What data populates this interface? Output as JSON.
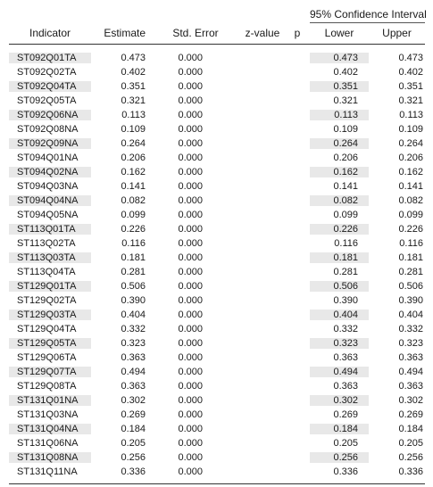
{
  "table": {
    "ci_header": "95% Confidence Interval",
    "columns": {
      "indicator": "Indicator",
      "estimate": "Estimate",
      "std_error": "Std. Error",
      "z_value": "z-value",
      "p": "p",
      "lower": "Lower",
      "upper": "Upper"
    },
    "rows": [
      {
        "indicator": "ST092Q01TA",
        "estimate": "0.473",
        "std_error": "0.000",
        "lower": "0.473",
        "upper": "0.473"
      },
      {
        "indicator": "ST092Q02TA",
        "estimate": "0.402",
        "std_error": "0.000",
        "lower": "0.402",
        "upper": "0.402"
      },
      {
        "indicator": "ST092Q04TA",
        "estimate": "0.351",
        "std_error": "0.000",
        "lower": "0.351",
        "upper": "0.351"
      },
      {
        "indicator": "ST092Q05TA",
        "estimate": "0.321",
        "std_error": "0.000",
        "lower": "0.321",
        "upper": "0.321"
      },
      {
        "indicator": "ST092Q06NA",
        "estimate": "0.113",
        "std_error": "0.000",
        "lower": "0.113",
        "upper": "0.113"
      },
      {
        "indicator": "ST092Q08NA",
        "estimate": "0.109",
        "std_error": "0.000",
        "lower": "0.109",
        "upper": "0.109"
      },
      {
        "indicator": "ST092Q09NA",
        "estimate": "0.264",
        "std_error": "0.000",
        "lower": "0.264",
        "upper": "0.264"
      },
      {
        "indicator": "ST094Q01NA",
        "estimate": "0.206",
        "std_error": "0.000",
        "lower": "0.206",
        "upper": "0.206"
      },
      {
        "indicator": "ST094Q02NA",
        "estimate": "0.162",
        "std_error": "0.000",
        "lower": "0.162",
        "upper": "0.162"
      },
      {
        "indicator": "ST094Q03NA",
        "estimate": "0.141",
        "std_error": "0.000",
        "lower": "0.141",
        "upper": "0.141"
      },
      {
        "indicator": "ST094Q04NA",
        "estimate": "0.082",
        "std_error": "0.000",
        "lower": "0.082",
        "upper": "0.082"
      },
      {
        "indicator": "ST094Q05NA",
        "estimate": "0.099",
        "std_error": "0.000",
        "lower": "0.099",
        "upper": "0.099"
      },
      {
        "indicator": "ST113Q01TA",
        "estimate": "0.226",
        "std_error": "0.000",
        "lower": "0.226",
        "upper": "0.226"
      },
      {
        "indicator": "ST113Q02TA",
        "estimate": "0.116",
        "std_error": "0.000",
        "lower": "0.116",
        "upper": "0.116"
      },
      {
        "indicator": "ST113Q03TA",
        "estimate": "0.181",
        "std_error": "0.000",
        "lower": "0.181",
        "upper": "0.181"
      },
      {
        "indicator": "ST113Q04TA",
        "estimate": "0.281",
        "std_error": "0.000",
        "lower": "0.281",
        "upper": "0.281"
      },
      {
        "indicator": "ST129Q01TA",
        "estimate": "0.506",
        "std_error": "0.000",
        "lower": "0.506",
        "upper": "0.506"
      },
      {
        "indicator": "ST129Q02TA",
        "estimate": "0.390",
        "std_error": "0.000",
        "lower": "0.390",
        "upper": "0.390"
      },
      {
        "indicator": "ST129Q03TA",
        "estimate": "0.404",
        "std_error": "0.000",
        "lower": "0.404",
        "upper": "0.404"
      },
      {
        "indicator": "ST129Q04TA",
        "estimate": "0.332",
        "std_error": "0.000",
        "lower": "0.332",
        "upper": "0.332"
      },
      {
        "indicator": "ST129Q05TA",
        "estimate": "0.323",
        "std_error": "0.000",
        "lower": "0.323",
        "upper": "0.323"
      },
      {
        "indicator": "ST129Q06TA",
        "estimate": "0.363",
        "std_error": "0.000",
        "lower": "0.363",
        "upper": "0.363"
      },
      {
        "indicator": "ST129Q07TA",
        "estimate": "0.494",
        "std_error": "0.000",
        "lower": "0.494",
        "upper": "0.494"
      },
      {
        "indicator": "ST129Q08TA",
        "estimate": "0.363",
        "std_error": "0.000",
        "lower": "0.363",
        "upper": "0.363"
      },
      {
        "indicator": "ST131Q01NA",
        "estimate": "0.302",
        "std_error": "0.000",
        "lower": "0.302",
        "upper": "0.302"
      },
      {
        "indicator": "ST131Q03NA",
        "estimate": "0.269",
        "std_error": "0.000",
        "lower": "0.269",
        "upper": "0.269"
      },
      {
        "indicator": "ST131Q04NA",
        "estimate": "0.184",
        "std_error": "0.000",
        "lower": "0.184",
        "upper": "0.184"
      },
      {
        "indicator": "ST131Q06NA",
        "estimate": "0.205",
        "std_error": "0.000",
        "lower": "0.205",
        "upper": "0.205"
      },
      {
        "indicator": "ST131Q08NA",
        "estimate": "0.256",
        "std_error": "0.000",
        "lower": "0.256",
        "upper": "0.256"
      },
      {
        "indicator": "ST131Q11NA",
        "estimate": "0.336",
        "std_error": "0.000",
        "lower": "0.336",
        "upper": "0.336"
      }
    ]
  },
  "colors": {
    "row_shade": "#e8e8e8",
    "rule": "#333333"
  }
}
